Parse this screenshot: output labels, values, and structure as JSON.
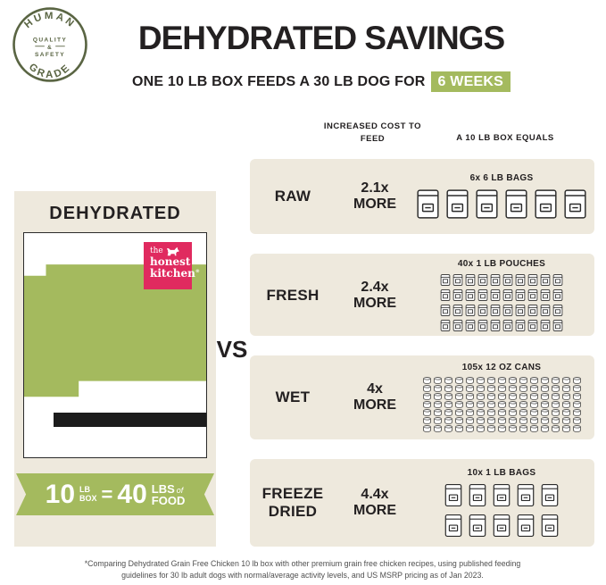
{
  "colors": {
    "green": "#A4BA5E",
    "cream": "#EEE9DD",
    "dark": "#232021",
    "pink": "#E02A5F"
  },
  "badge": {
    "top": "HUMAN",
    "quality": "QUALITY",
    "amp": "&",
    "safety": "SAFETY",
    "bottom": "GRADE"
  },
  "header": {
    "title": "DEHYDRATED SAVINGS",
    "subtitle": "ONE 10 LB BOX FEEDS A 30 LB DOG FOR",
    "highlight": "6 WEEKS"
  },
  "columns": {
    "cost": "INCREASED COST TO FEED",
    "equals": "A 10 LB BOX EQUALS"
  },
  "panel": {
    "title": "DEHYDRATED",
    "logo": {
      "the": "the",
      "honest": "honest",
      "kitchen": "kitchen",
      "reg": "®"
    },
    "ribbon": {
      "n1": "10",
      "lb": "LB",
      "box": "BOX",
      "eq": "=",
      "n2": "40",
      "lbs": "LBS",
      "of": "of",
      "food": "FOOD"
    }
  },
  "vs": "VS",
  "rows": [
    {
      "name": "RAW",
      "cost": "2.1x",
      "more": "MORE",
      "label": "6x 6 LB BAGS",
      "icons": {
        "type": "bag",
        "count": 6,
        "per_row": 6
      }
    },
    {
      "name": "FRESH",
      "cost": "2.4x",
      "more": "MORE",
      "label": "40x 1 LB POUCHES",
      "icons": {
        "type": "pouch",
        "count": 40,
        "per_row": 10
      }
    },
    {
      "name": "WET",
      "cost": "4x",
      "more": "MORE",
      "label": "105x 12 OZ CANS",
      "icons": {
        "type": "can",
        "count": 105,
        "per_row": 15
      }
    },
    {
      "name": "FREEZE DRIED",
      "cost": "4.4x",
      "more": "MORE",
      "label": "10x 1 LB BAGS",
      "icons": {
        "type": "bag_small",
        "count": 10,
        "per_row": 5
      }
    }
  ],
  "footnote": "*Comparing Dehydrated Grain Free Chicken 10 lb box with other premium grain free chicken recipes, using published feeding guidelines for 30 lb adult dogs with normal/average activity levels, and US MSRP pricing as of Jan 2023."
}
